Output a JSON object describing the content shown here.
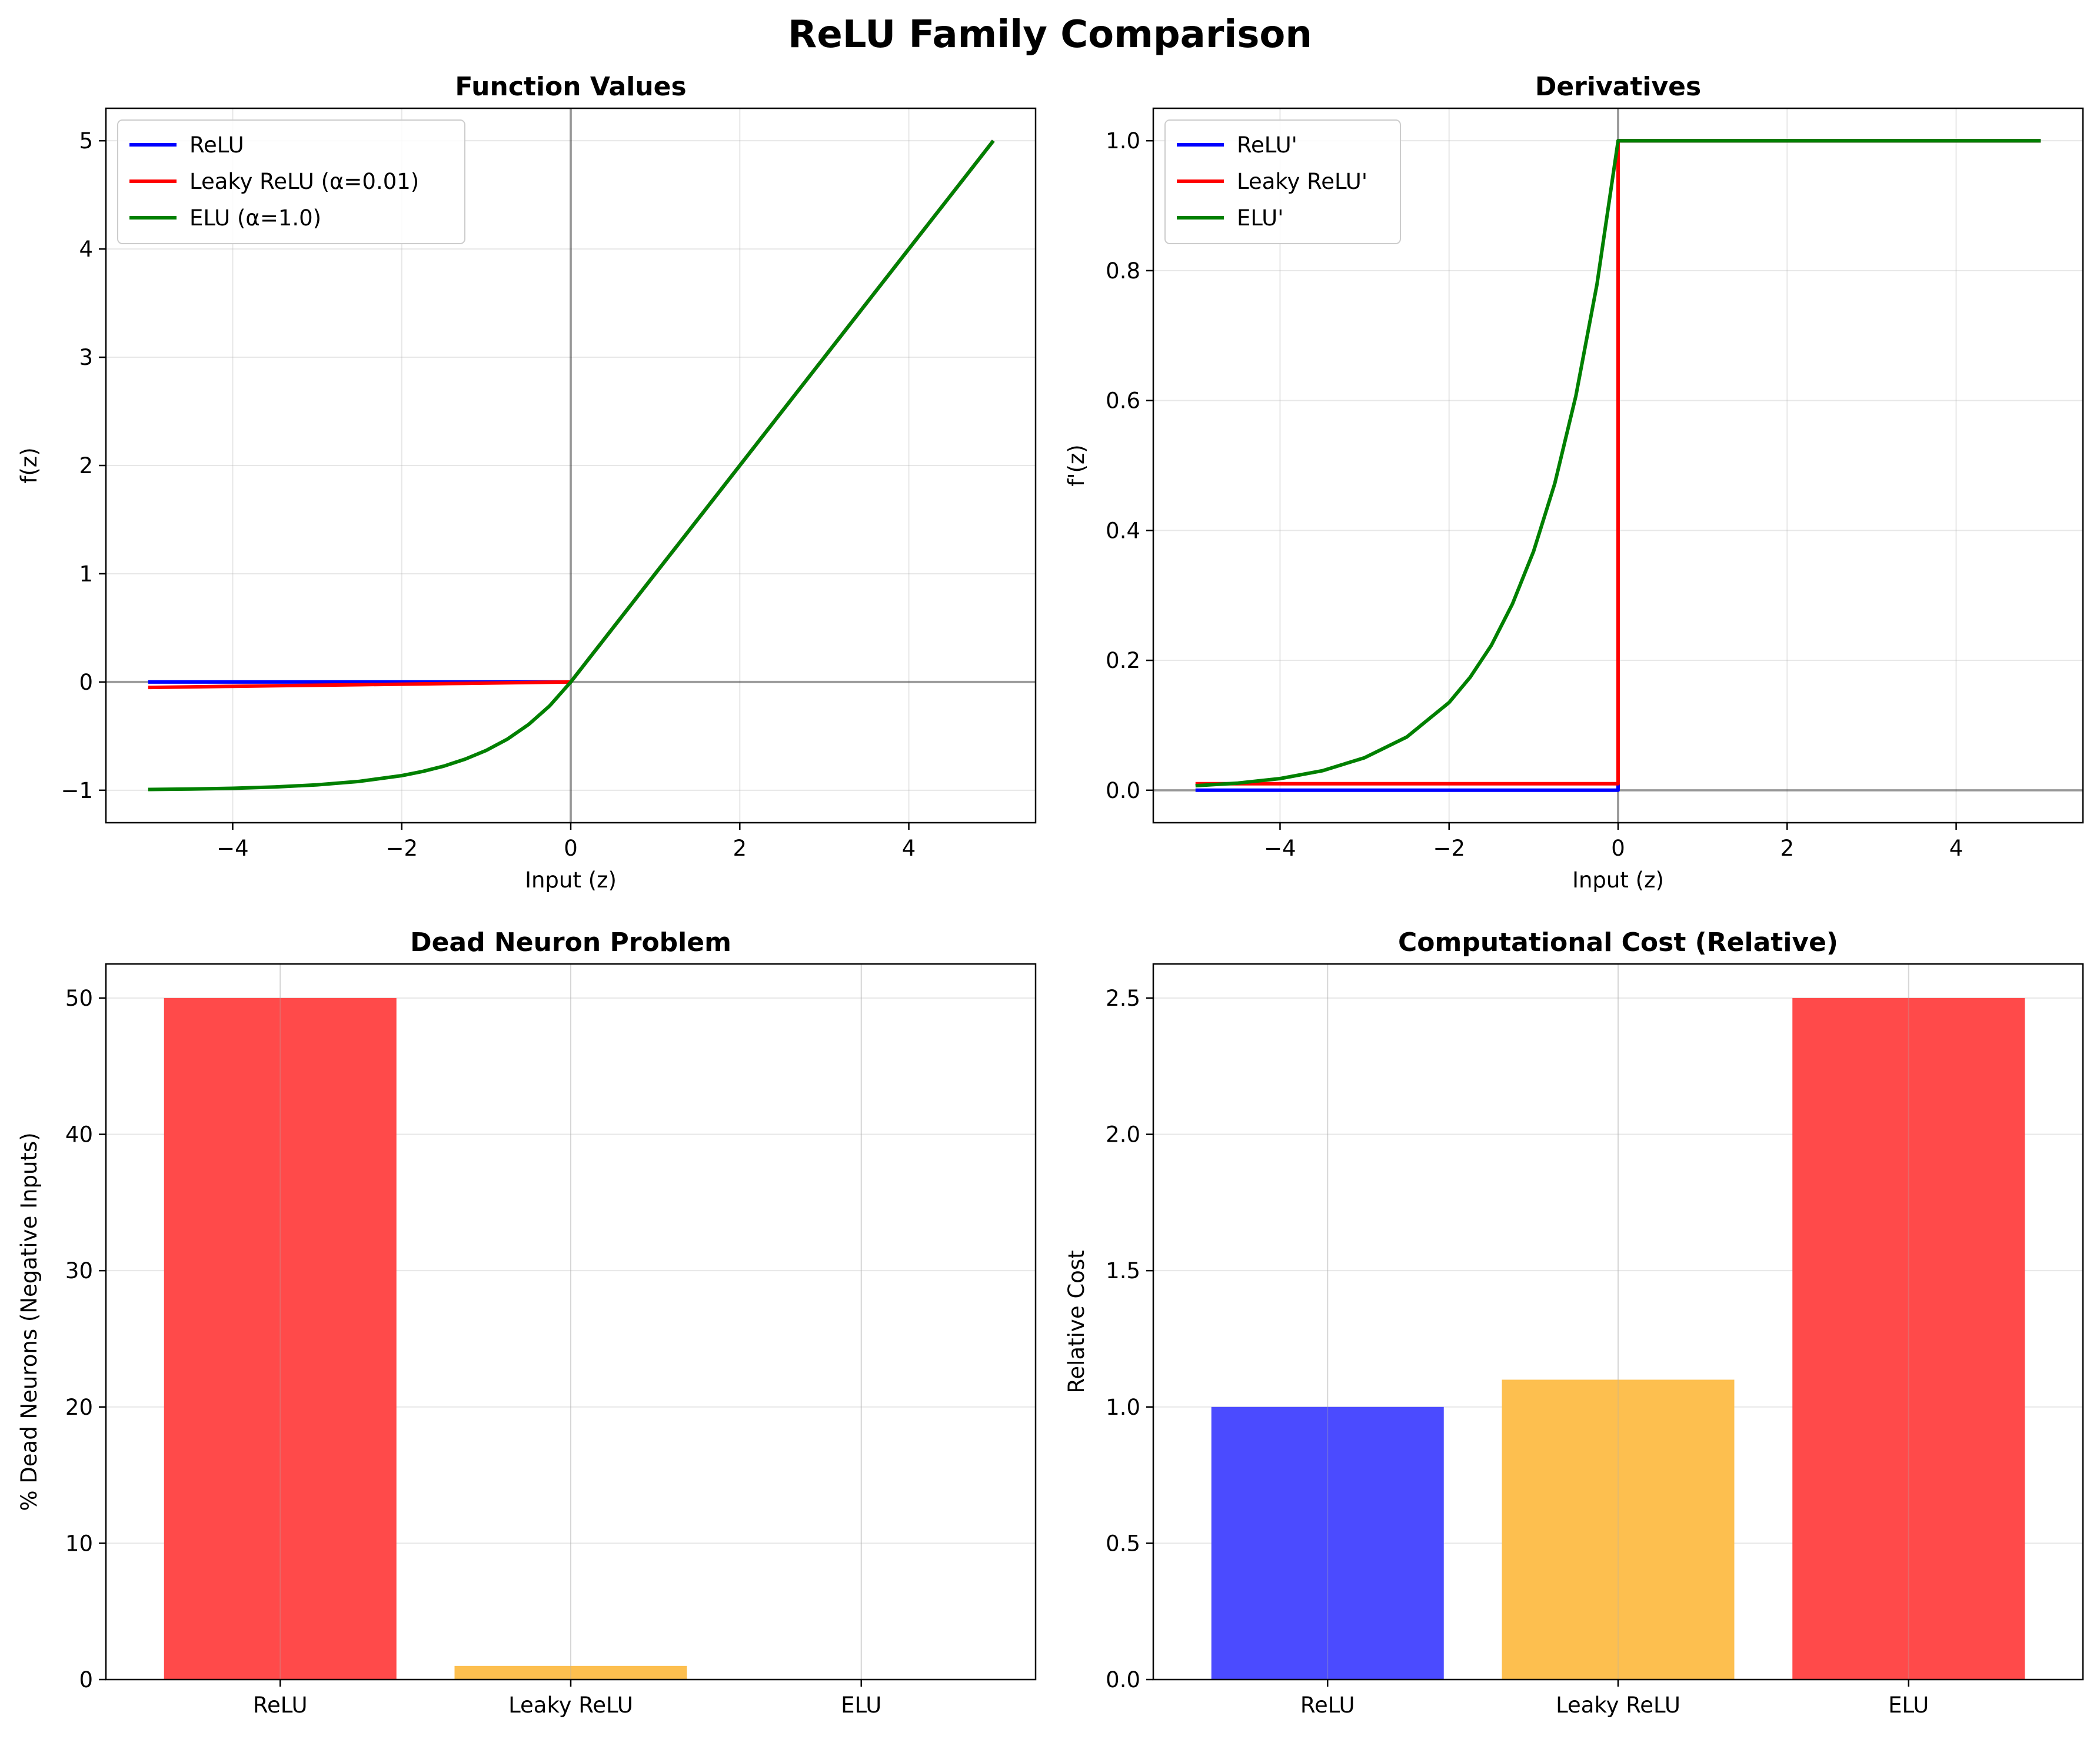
{
  "figure": {
    "title": "ReLU Family Comparison"
  },
  "colors": {
    "relu": "#0000ff",
    "leaky": "#ff0000",
    "elu": "#008000",
    "bar_red": "#ff4a4a",
    "bar_orange": "#fdbf4f",
    "bar_blue": "#4b4bff"
  },
  "chart_data": [
    {
      "type": "line",
      "title": "Function Values",
      "xlabel": "Input (z)",
      "ylabel": "f(z)",
      "xlim": [
        -5.5,
        5.5
      ],
      "ylim": [
        -1.3,
        5.3
      ],
      "xticks": [
        -4,
        -2,
        0,
        2,
        4
      ],
      "xtick_labels": [
        "−4",
        "−2",
        "0",
        "2",
        "4"
      ],
      "yticks": [
        -1,
        0,
        1,
        2,
        3,
        4,
        5
      ],
      "ytick_labels": [
        "−1",
        "0",
        "1",
        "2",
        "3",
        "4",
        "5"
      ],
      "grid": true,
      "legend": "top-left",
      "zero_lines": true,
      "x": [
        -5,
        -4.5,
        -4,
        -3.5,
        -3,
        -2.5,
        -2,
        -1.75,
        -1.5,
        -1.25,
        -1,
        -0.75,
        -0.5,
        -0.25,
        0,
        0.5,
        1,
        1.5,
        2,
        2.5,
        3,
        3.5,
        4,
        4.5,
        5
      ],
      "series": [
        {
          "name": "ReLU",
          "color": "#0000ff",
          "values": [
            0,
            0,
            0,
            0,
            0,
            0,
            0,
            0,
            0,
            0,
            0,
            0,
            0,
            0,
            0,
            0.5,
            1,
            1.5,
            2,
            2.5,
            3,
            3.5,
            4,
            4.5,
            5
          ]
        },
        {
          "name": "Leaky ReLU (α=0.01)",
          "color": "#ff0000",
          "values": [
            -0.05,
            -0.045,
            -0.04,
            -0.035,
            -0.03,
            -0.025,
            -0.02,
            -0.0175,
            -0.015,
            -0.0125,
            -0.01,
            -0.0075,
            -0.005,
            -0.0025,
            0,
            0.5,
            1,
            1.5,
            2,
            2.5,
            3,
            3.5,
            4,
            4.5,
            5
          ]
        },
        {
          "name": "ELU (α=1.0)",
          "color": "#008000",
          "values": [
            -0.993,
            -0.989,
            -0.982,
            -0.97,
            -0.95,
            -0.918,
            -0.865,
            -0.826,
            -0.777,
            -0.713,
            -0.632,
            -0.528,
            -0.393,
            -0.221,
            0,
            0.5,
            1,
            1.5,
            2,
            2.5,
            3,
            3.5,
            4,
            4.5,
            5
          ]
        }
      ]
    },
    {
      "type": "line",
      "title": "Derivatives",
      "xlabel": "Input (z)",
      "ylabel": "f'(z)",
      "xlim": [
        -5.5,
        5.5
      ],
      "ylim": [
        -0.05,
        1.05
      ],
      "xticks": [
        -4,
        -2,
        0,
        2,
        4
      ],
      "xtick_labels": [
        "−4",
        "−2",
        "0",
        "2",
        "4"
      ],
      "yticks": [
        0,
        0.2,
        0.4,
        0.6,
        0.8,
        1.0
      ],
      "ytick_labels": [
        "0.0",
        "0.2",
        "0.4",
        "0.6",
        "0.8",
        "1.0"
      ],
      "grid": true,
      "legend": "top-left",
      "zero_lines": true,
      "x": [
        -5,
        -4.5,
        -4,
        -3.5,
        -3,
        -2.5,
        -2,
        -1.75,
        -1.5,
        -1.25,
        -1,
        -0.75,
        -0.5,
        -0.25,
        0,
        0,
        0.5,
        1,
        2,
        3,
        4,
        5
      ],
      "series": [
        {
          "name": "ReLU'",
          "color": "#0000ff",
          "values": [
            0,
            0,
            0,
            0,
            0,
            0,
            0,
            0,
            0,
            0,
            0,
            0,
            0,
            0,
            0,
            1,
            1,
            1,
            1,
            1,
            1,
            1
          ]
        },
        {
          "name": "Leaky ReLU'",
          "color": "#ff0000",
          "values": [
            0.01,
            0.01,
            0.01,
            0.01,
            0.01,
            0.01,
            0.01,
            0.01,
            0.01,
            0.01,
            0.01,
            0.01,
            0.01,
            0.01,
            0.01,
            1,
            1,
            1,
            1,
            1,
            1,
            1
          ]
        },
        {
          "name": "ELU'",
          "color": "#008000",
          "values": [
            0.007,
            0.011,
            0.018,
            0.03,
            0.05,
            0.082,
            0.135,
            0.174,
            0.223,
            0.287,
            0.368,
            0.472,
            0.607,
            0.779,
            1,
            1,
            1,
            1,
            1,
            1,
            1,
            1
          ]
        }
      ]
    },
    {
      "type": "bar",
      "title": "Dead Neuron Problem",
      "xlabel": "",
      "ylabel": "% Dead Neurons (Negative Inputs)",
      "categories": [
        "ReLU",
        "Leaky ReLU",
        "ELU"
      ],
      "values": [
        50,
        1,
        0
      ],
      "bar_colors": [
        "#ff4a4a",
        "#fdbf4f",
        "#4b4bff"
      ],
      "ylim": [
        0,
        52.5
      ],
      "yticks": [
        0,
        10,
        20,
        30,
        40,
        50
      ],
      "ytick_labels": [
        "0",
        "10",
        "20",
        "30",
        "40",
        "50"
      ],
      "grid": true
    },
    {
      "type": "bar",
      "title": "Computational Cost (Relative)",
      "xlabel": "",
      "ylabel": "Relative Cost",
      "categories": [
        "ReLU",
        "Leaky ReLU",
        "ELU"
      ],
      "values": [
        1.0,
        1.1,
        2.5
      ],
      "bar_colors": [
        "#4b4bff",
        "#fdbf4f",
        "#ff4a4a"
      ],
      "ylim": [
        0,
        2.625
      ],
      "yticks": [
        0,
        0.5,
        1.0,
        1.5,
        2.0,
        2.5
      ],
      "ytick_labels": [
        "0.0",
        "0.5",
        "1.0",
        "1.5",
        "2.0",
        "2.5"
      ],
      "grid": true
    }
  ]
}
